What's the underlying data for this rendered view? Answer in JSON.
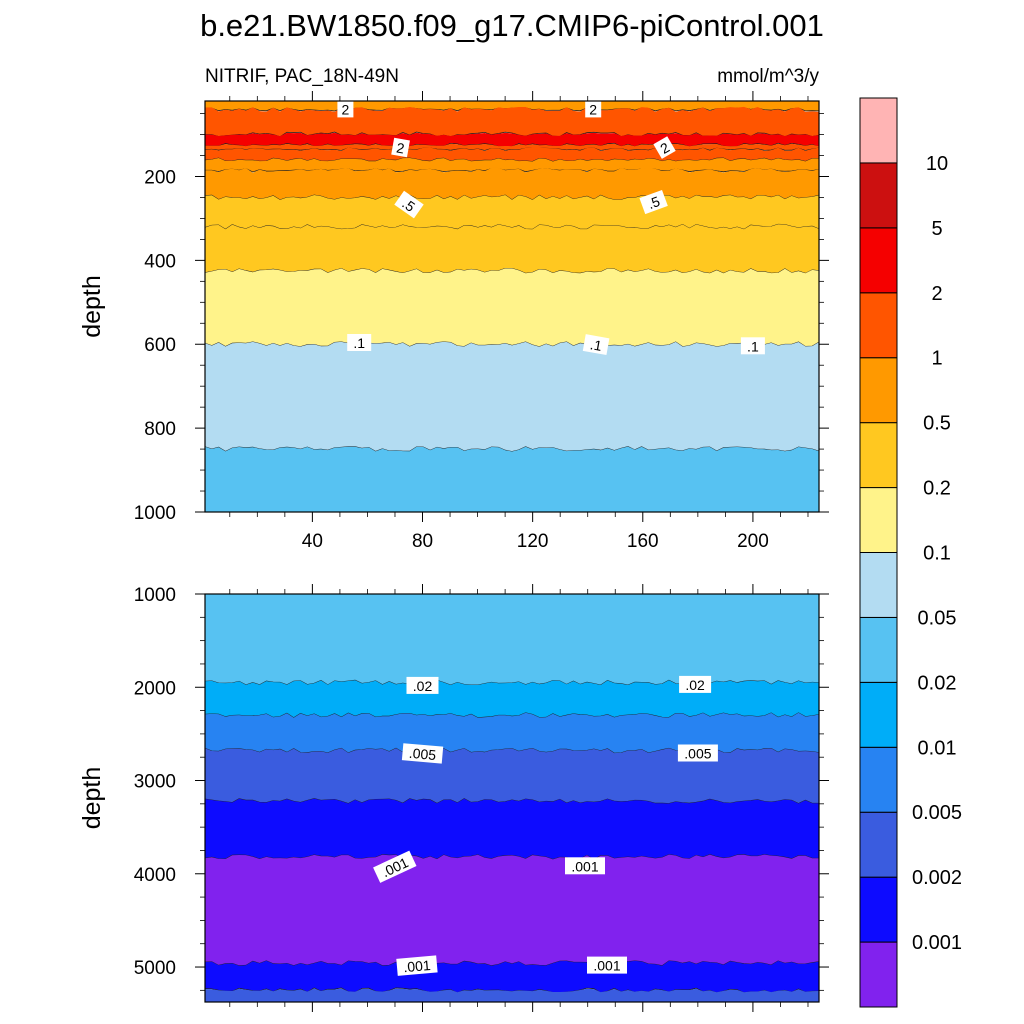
{
  "chart_data": {
    "type": "contour",
    "title": "b.e21.BW1850.f09_g17.CMIP6-piControl.001",
    "left_label": "NITRIF, PAC_18N-49N",
    "units": "mmol/m^3/y",
    "colorbar": {
      "levels": [
        "0.001",
        "0.002",
        "0.005",
        "0.01",
        "0.02",
        "0.05",
        "0.1",
        "0.2",
        "0.5",
        "1",
        "2",
        "5",
        "10"
      ],
      "colors": [
        "#8122EE",
        "#0D0BFF",
        "#3A5CDF",
        "#2783F2",
        "#00ADF8",
        "#57C2F2",
        "#B3DCF2",
        "#FFF38A",
        "#FFC820",
        "#FF9900",
        "#FF5500",
        "#F50000",
        "#CC1010",
        "#FFB4B4"
      ]
    },
    "panels": [
      {
        "name": "upper",
        "ylabel": "depth",
        "x_ticks": [
          "40",
          "80",
          "120",
          "160",
          "200"
        ],
        "x_tick_values": [
          40,
          80,
          120,
          160,
          200
        ],
        "xlim": [
          1,
          224
        ],
        "y_ticks": [
          "200",
          "400",
          "600",
          "800",
          "1000"
        ],
        "y_tick_values": [
          200,
          400,
          600,
          800,
          1000
        ],
        "ylim": [
          20,
          1000
        ],
        "bands": [
          {
            "top": 20,
            "bottom": 40,
            "color": "#FF9900"
          },
          {
            "top": 40,
            "bottom": 100,
            "color": "#FF5500"
          },
          {
            "top": 100,
            "bottom": 125,
            "color": "#F50000"
          },
          {
            "top": 125,
            "bottom": 135,
            "color": "#FF5500"
          },
          {
            "top": 135,
            "bottom": 160,
            "color": "#FF5500"
          },
          {
            "top": 160,
            "bottom": 185,
            "color": "#FF9900"
          },
          {
            "top": 185,
            "bottom": 250,
            "color": "#FF9900"
          },
          {
            "top": 250,
            "bottom": 320,
            "color": "#FFC820"
          },
          {
            "top": 320,
            "bottom": 425,
            "color": "#FFC820"
          },
          {
            "top": 425,
            "bottom": 600,
            "color": "#FFF38A"
          },
          {
            "top": 600,
            "bottom": 850,
            "color": "#B3DCF2"
          },
          {
            "top": 850,
            "bottom": 1000,
            "color": "#57C2F2"
          }
        ],
        "contour_labels": [
          {
            "text": "2",
            "x": 52,
            "y": 40,
            "rot": 0
          },
          {
            "text": "2",
            "x": 142,
            "y": 40,
            "rot": 0
          },
          {
            "text": "2",
            "x": 72,
            "y": 132,
            "rot": 10
          },
          {
            "text": "2",
            "x": 168,
            "y": 132,
            "rot": -30
          },
          {
            "text": ".5",
            "x": 75,
            "y": 268,
            "rot": 35
          },
          {
            "text": ".5",
            "x": 164,
            "y": 262,
            "rot": -20
          },
          {
            "text": ".1",
            "x": 57,
            "y": 597,
            "rot": 0
          },
          {
            "text": ".1",
            "x": 143,
            "y": 602,
            "rot": 10
          },
          {
            "text": ".1",
            "x": 200,
            "y": 605,
            "rot": 0
          }
        ]
      },
      {
        "name": "lower",
        "ylabel": "depth",
        "x_ticks": [],
        "x_tick_values": [
          40,
          80,
          120,
          160,
          200
        ],
        "xlim": [
          1,
          224
        ],
        "y_ticks": [
          "1000",
          "2000",
          "3000",
          "4000",
          "5000"
        ],
        "y_tick_values": [
          1000,
          2000,
          3000,
          4000,
          5000
        ],
        "ylim": [
          1000,
          5375
        ],
        "bands": [
          {
            "top": 1000,
            "bottom": 1950,
            "color": "#57C2F2"
          },
          {
            "top": 1950,
            "bottom": 2300,
            "color": "#00ADF8"
          },
          {
            "top": 2300,
            "bottom": 2680,
            "color": "#2783F2"
          },
          {
            "top": 2680,
            "bottom": 3220,
            "color": "#3A5CDF"
          },
          {
            "top": 3220,
            "bottom": 3820,
            "color": "#0D0BFF"
          },
          {
            "top": 3820,
            "bottom": 4960,
            "color": "#8122EE"
          },
          {
            "top": 4960,
            "bottom": 5250,
            "color": "#0D0BFF"
          },
          {
            "top": 5250,
            "bottom": 5375,
            "color": "#3A5CDF"
          }
        ],
        "contour_labels": [
          {
            "text": ".02",
            "x": 80,
            "y": 1985,
            "rot": 0
          },
          {
            "text": ".02",
            "x": 179,
            "y": 1975,
            "rot": 0
          },
          {
            "text": ".005",
            "x": 80,
            "y": 2715,
            "rot": 5
          },
          {
            "text": ".005",
            "x": 180,
            "y": 2710,
            "rot": 0
          },
          {
            "text": ".001",
            "x": 70,
            "y": 3930,
            "rot": -25
          },
          {
            "text": ".001",
            "x": 139,
            "y": 3920,
            "rot": 0
          },
          {
            "text": ".001",
            "x": 78,
            "y": 4990,
            "rot": -5
          },
          {
            "text": ".001",
            "x": 147,
            "y": 4985,
            "rot": 0
          }
        ]
      }
    ]
  }
}
